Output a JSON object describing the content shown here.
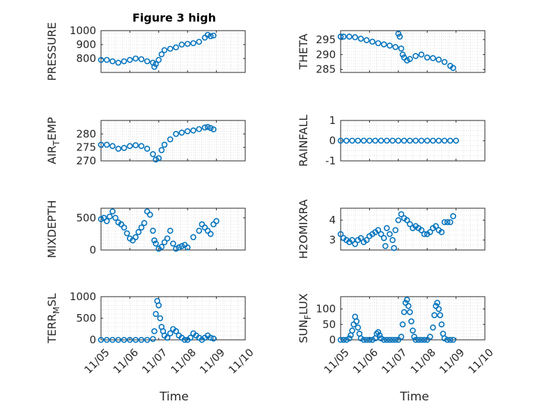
{
  "figure": {
    "title": "Figure 3 high",
    "xlabel": "Time",
    "x_tick_labels": [
      "11/05",
      "11/06",
      "11/07",
      "11/08",
      "11/09",
      "11/10"
    ],
    "marker_color": "#0072BD"
  },
  "chart_data": [
    {
      "type": "scatter",
      "ylabel": "PRESSURE",
      "x_unit": "day of November",
      "xlim": [
        5,
        10
      ],
      "ylim": [
        700,
        1000
      ],
      "yticks": [
        800,
        900,
        1000
      ],
      "x": [
        5.0,
        5.2,
        5.4,
        5.6,
        5.8,
        6.0,
        6.2,
        6.4,
        6.6,
        6.8,
        6.85,
        6.9,
        7.0,
        7.1,
        7.2,
        7.4,
        7.6,
        7.8,
        8.0,
        8.2,
        8.4,
        8.6,
        8.7,
        8.8,
        8.9
      ],
      "y": [
        790,
        790,
        780,
        770,
        780,
        790,
        800,
        795,
        780,
        770,
        740,
        760,
        790,
        830,
        860,
        870,
        880,
        900,
        905,
        910,
        920,
        950,
        970,
        960,
        965
      ]
    },
    {
      "type": "scatter",
      "ylabel": "THETA",
      "x_unit": "day of November",
      "xlim": [
        5,
        10
      ],
      "ylim": [
        284,
        298
      ],
      "yticks": [
        285,
        290,
        295
      ],
      "x": [
        5.0,
        5.1,
        5.3,
        5.5,
        5.7,
        5.9,
        6.1,
        6.3,
        6.5,
        6.7,
        6.9,
        7.0,
        7.05,
        7.1,
        7.15,
        7.2,
        7.3,
        7.4,
        7.6,
        7.8,
        8.0,
        8.2,
        8.4,
        8.6,
        8.8,
        8.9
      ],
      "y": [
        296,
        296,
        296,
        295.8,
        295.3,
        294.8,
        294.3,
        293.8,
        293.4,
        293,
        292.5,
        297,
        296,
        292,
        290,
        289,
        288,
        288.5,
        289.5,
        290,
        289,
        288.8,
        288.3,
        287.5,
        286.2,
        285.5
      ]
    },
    {
      "type": "scatter",
      "ylabel": "AIR_TEMP",
      "x_unit": "day of November",
      "xlim": [
        5,
        10
      ],
      "ylim": [
        270,
        285
      ],
      "yticks": [
        270,
        275,
        280
      ],
      "x": [
        5.0,
        5.2,
        5.4,
        5.6,
        5.8,
        6.0,
        6.2,
        6.4,
        6.6,
        6.8,
        6.9,
        7.0,
        7.1,
        7.2,
        7.4,
        7.6,
        7.8,
        8.0,
        8.2,
        8.4,
        8.6,
        8.7,
        8.8,
        8.9
      ],
      "y": [
        276,
        276,
        275.5,
        274.5,
        274.8,
        275.5,
        275.8,
        275.5,
        274.5,
        272.5,
        270.5,
        271,
        274,
        276,
        278,
        280,
        280.5,
        281,
        281.3,
        281.8,
        282.4,
        282.6,
        282.2,
        281.7
      ]
    },
    {
      "type": "scatter",
      "ylabel": "RAINFALL",
      "x_unit": "day of November",
      "xlim": [
        5,
        10
      ],
      "ylim": [
        -1,
        1
      ],
      "yticks": [
        -1,
        0,
        1
      ],
      "x": [
        5.0,
        5.2,
        5.4,
        5.6,
        5.8,
        6.0,
        6.2,
        6.4,
        6.6,
        6.8,
        7.0,
        7.2,
        7.4,
        7.6,
        7.8,
        8.0,
        8.2,
        8.4,
        8.6,
        8.8,
        9.0
      ],
      "y": [
        0,
        0,
        0,
        0,
        0,
        0,
        0,
        0,
        0,
        0,
        0,
        0,
        0,
        0,
        0,
        0,
        0,
        0,
        0,
        0,
        0
      ]
    },
    {
      "type": "scatter",
      "ylabel": "MIXDEPTH",
      "x_unit": "day of November",
      "xlim": [
        5,
        10
      ],
      "ylim": [
        0,
        650
      ],
      "yticks": [
        0,
        500
      ],
      "x": [
        5.0,
        5.1,
        5.2,
        5.3,
        5.4,
        5.5,
        5.6,
        5.7,
        5.8,
        5.9,
        6.0,
        6.1,
        6.2,
        6.3,
        6.4,
        6.5,
        6.6,
        6.7,
        6.8,
        6.85,
        6.9,
        7.0,
        7.1,
        7.2,
        7.3,
        7.4,
        7.5,
        7.6,
        7.7,
        7.8,
        7.9,
        8.0,
        8.2,
        8.4,
        8.5,
        8.6,
        8.7,
        8.8,
        8.9,
        9.0
      ],
      "y": [
        480,
        500,
        450,
        520,
        600,
        500,
        430,
        400,
        350,
        260,
        180,
        150,
        200,
        280,
        350,
        420,
        600,
        550,
        300,
        150,
        100,
        20,
        50,
        120,
        180,
        300,
        100,
        20,
        40,
        60,
        80,
        40,
        200,
        300,
        400,
        350,
        300,
        250,
        400,
        450
      ]
    },
    {
      "type": "scatter",
      "ylabel": "H2OMIXRA",
      "x_unit": "day of November",
      "xlim": [
        5,
        10
      ],
      "ylim": [
        2.5,
        4.6
      ],
      "yticks": [
        3,
        4
      ],
      "x": [
        5.0,
        5.1,
        5.2,
        5.3,
        5.4,
        5.5,
        5.6,
        5.7,
        5.8,
        5.9,
        6.0,
        6.1,
        6.2,
        6.3,
        6.4,
        6.5,
        6.55,
        6.6,
        6.7,
        6.8,
        6.85,
        6.9,
        7.0,
        7.1,
        7.2,
        7.3,
        7.4,
        7.5,
        7.6,
        7.7,
        7.8,
        7.9,
        8.0,
        8.1,
        8.2,
        8.3,
        8.4,
        8.5,
        8.6,
        8.7,
        8.8,
        8.9
      ],
      "y": [
        3.3,
        3.1,
        3.0,
        2.9,
        3.0,
        2.8,
        3.0,
        3.1,
        2.9,
        3.0,
        3.2,
        3.3,
        3.4,
        3.5,
        3.3,
        3.1,
        2.7,
        3.6,
        3.3,
        3.0,
        2.6,
        3.5,
        4.0,
        4.3,
        4.1,
        4.0,
        3.8,
        3.6,
        3.7,
        3.6,
        3.5,
        3.3,
        3.3,
        3.4,
        3.6,
        3.7,
        3.5,
        3.4,
        3.9,
        3.9,
        3.9,
        4.2
      ]
    },
    {
      "type": "scatter",
      "ylabel": "TERR_MSL",
      "x_unit": "day of November",
      "xlim": [
        5,
        10
      ],
      "ylim": [
        0,
        1000
      ],
      "yticks": [
        0,
        500,
        1000
      ],
      "x": [
        5.0,
        5.2,
        5.4,
        5.6,
        5.8,
        6.0,
        6.2,
        6.4,
        6.6,
        6.8,
        6.85,
        6.9,
        6.95,
        7.0,
        7.05,
        7.1,
        7.15,
        7.2,
        7.3,
        7.4,
        7.5,
        7.6,
        7.7,
        7.8,
        7.9,
        8.0,
        8.1,
        8.2,
        8.3,
        8.4,
        8.5,
        8.6,
        8.7,
        8.8,
        8.9
      ],
      "y": [
        0,
        0,
        0,
        0,
        0,
        0,
        0,
        0,
        0,
        20,
        200,
        600,
        900,
        800,
        500,
        300,
        200,
        100,
        50,
        150,
        250,
        200,
        100,
        50,
        0,
        0,
        50,
        150,
        100,
        50,
        0,
        50,
        100,
        50,
        30
      ]
    },
    {
      "type": "scatter",
      "ylabel": "SUN_FLUX",
      "x_unit": "day of November",
      "xlim": [
        5,
        10
      ],
      "ylim": [
        0,
        140
      ],
      "yticks": [
        0,
        50,
        100
      ],
      "x": [
        5.0,
        5.1,
        5.2,
        5.3,
        5.35,
        5.4,
        5.45,
        5.5,
        5.55,
        5.6,
        5.65,
        5.7,
        5.8,
        5.9,
        6.0,
        6.1,
        6.2,
        6.25,
        6.3,
        6.35,
        6.4,
        6.5,
        6.6,
        6.7,
        6.8,
        6.9,
        7.0,
        7.1,
        7.15,
        7.2,
        7.25,
        7.3,
        7.35,
        7.4,
        7.45,
        7.5,
        7.55,
        7.6,
        7.7,
        7.8,
        7.9,
        8.0,
        8.1,
        8.2,
        8.25,
        8.3,
        8.35,
        8.4,
        8.45,
        8.5,
        8.55,
        8.6,
        8.7,
        8.8,
        8.9
      ],
      "y": [
        0,
        0,
        0,
        5,
        15,
        30,
        50,
        75,
        60,
        40,
        20,
        5,
        0,
        0,
        0,
        0,
        5,
        20,
        25,
        15,
        5,
        0,
        0,
        0,
        0,
        0,
        0,
        10,
        50,
        90,
        120,
        130,
        110,
        90,
        60,
        30,
        10,
        0,
        0,
        0,
        0,
        0,
        10,
        40,
        80,
        110,
        120,
        100,
        80,
        50,
        20,
        5,
        0,
        0,
        0
      ]
    }
  ]
}
